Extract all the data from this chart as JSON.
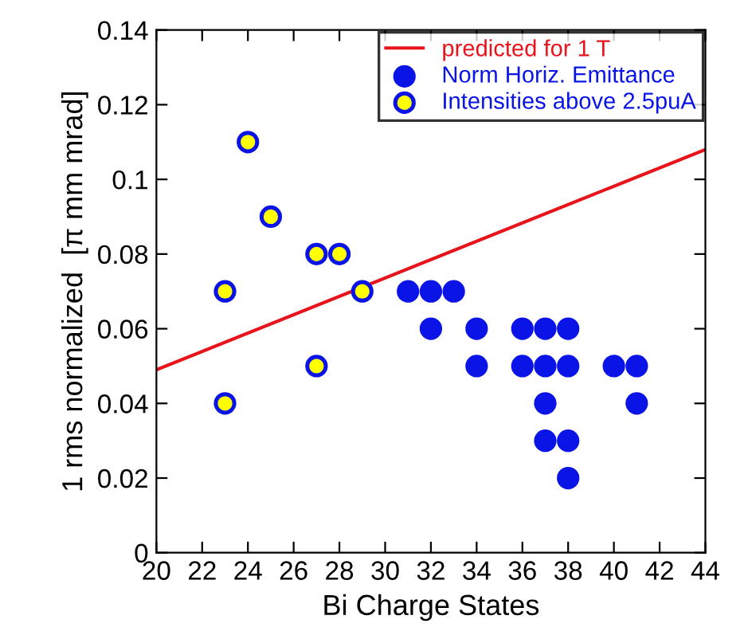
{
  "chart_data": {
    "type": "scatter",
    "xlabel": "Bi Charge States",
    "ylabel": "1 rms normalized  [π mm mrad]",
    "xlim": [
      20,
      44
    ],
    "xticks": [
      20,
      22,
      24,
      26,
      28,
      30,
      32,
      34,
      36,
      38,
      40,
      42,
      44
    ],
    "ylim": [
      0,
      0.14
    ],
    "yticks": [
      {
        "value": 0,
        "label": "0"
      },
      {
        "value": 0.02,
        "label": "0.02"
      },
      {
        "value": 0.04,
        "label": "0.04"
      },
      {
        "value": 0.06,
        "label": "0.06"
      },
      {
        "value": 0.08,
        "label": "0.08"
      },
      {
        "value": 0.1,
        "label": "0.1"
      },
      {
        "value": 0.12,
        "label": "0.12"
      },
      {
        "value": 0.14,
        "label": "0.14"
      }
    ],
    "grid": false,
    "legend": "top right",
    "series": [
      {
        "name": "predicted for 1 T",
        "type": "line",
        "marker": "none",
        "color": "#e8141b",
        "x": [
          20,
          44
        ],
        "values": [
          0.049,
          0.108
        ]
      },
      {
        "name": "Norm Horiz. Emittance",
        "marker": "circle",
        "color": "#0a14e6",
        "x": [
          31,
          32,
          33,
          32,
          34,
          34,
          36,
          37,
          38,
          36,
          37,
          38,
          37,
          37,
          38,
          38,
          40,
          41,
          41
        ],
        "values": [
          0.07,
          0.07,
          0.07,
          0.06,
          0.06,
          0.05,
          0.06,
          0.06,
          0.06,
          0.05,
          0.05,
          0.05,
          0.04,
          0.03,
          0.03,
          0.02,
          0.05,
          0.05,
          0.04
        ]
      },
      {
        "name": "Intensities above 2.5puA",
        "marker": "circle",
        "color": "#ffff00",
        "x": [
          23,
          23,
          24,
          25,
          27,
          28,
          27,
          29
        ],
        "values": [
          0.07,
          0.04,
          0.11,
          0.09,
          0.08,
          0.08,
          0.05,
          0.07
        ]
      }
    ]
  }
}
